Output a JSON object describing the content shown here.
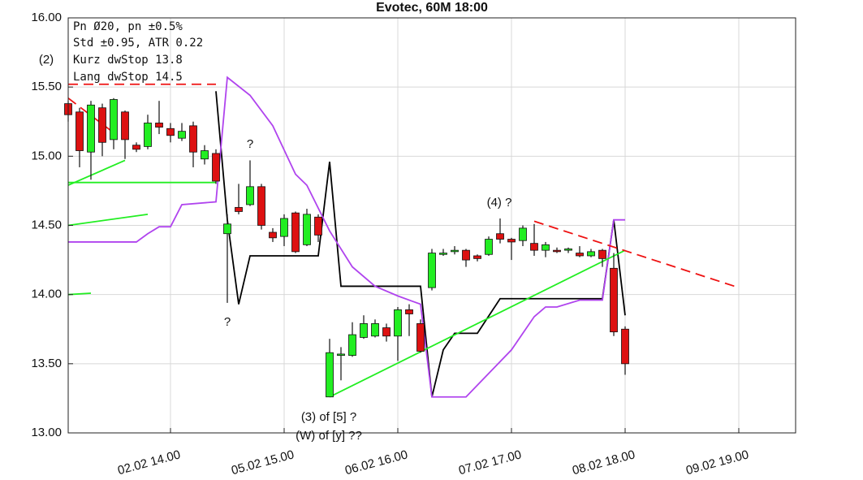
{
  "chart_data": {
    "type": "candlestick",
    "title": "Evotec, 60M 18:00",
    "info": [
      "Pn  Ø20, pn ±0.5%",
      "Std ±0.95, ATR 0.22",
      "Kurz dwStop 13.8",
      "Lang dwStop 14.5"
    ],
    "annotations": [
      "(2)",
      "?",
      "?",
      "(4) ?",
      "(3) of [5] ?",
      "(W) of [y] ??"
    ],
    "xlim": [
      0,
      64
    ],
    "xticks": [
      {
        "value": 9,
        "label": "02.02 14.00"
      },
      {
        "value": 19,
        "label": "05.02 15.00"
      },
      {
        "value": 29,
        "label": "06.02 16.00"
      },
      {
        "value": 39,
        "label": "07.02 17.00"
      },
      {
        "value": 49,
        "label": "08.02 18.00"
      },
      {
        "value": 59,
        "label": "09.02 19.00"
      }
    ],
    "ylim": [
      13,
      16
    ],
    "yticks": [
      {
        "value": 13,
        "label": "13.00"
      },
      {
        "value": 13.5,
        "label": "13.50"
      },
      {
        "value": 14,
        "label": "14.00"
      },
      {
        "value": 14.5,
        "label": "14.50"
      },
      {
        "value": 15,
        "label": "15.00"
      },
      {
        "value": 15.5,
        "label": "15.50"
      },
      {
        "value": 16,
        "label": "16.00"
      }
    ],
    "grid": true,
    "up_color": "#22ee22",
    "down_color": "#dd1111",
    "x": [
      0,
      1,
      2,
      3,
      4,
      5,
      6,
      7,
      8,
      9,
      10,
      11,
      12,
      13,
      14,
      15,
      16,
      17,
      18,
      19,
      20,
      21,
      22,
      23,
      24,
      25,
      26,
      27,
      28,
      29,
      30,
      31,
      32,
      33,
      34,
      35,
      36,
      37,
      38,
      39,
      40,
      41,
      42,
      43,
      44,
      45,
      46,
      47,
      48,
      49
    ],
    "open": [
      15.38,
      15.32,
      15.03,
      15.35,
      15.12,
      15.32,
      15.08,
      15.07,
      15.24,
      15.2,
      15.13,
      15.22,
      14.98,
      15.02,
      14.44,
      14.63,
      14.65,
      14.78,
      14.45,
      14.42,
      14.59,
      14.36,
      14.56,
      13.26,
      13.56,
      13.56,
      13.69,
      13.7,
      13.76,
      13.7,
      13.89,
      13.79,
      14.05,
      14.29,
      14.31,
      14.32,
      14.28,
      14.29,
      14.44,
      14.4,
      14.39,
      14.37,
      14.32,
      14.32,
      14.32,
      14.3,
      14.28,
      14.32,
      14.19,
      13.75
    ],
    "high": [
      15.4,
      15.35,
      15.4,
      15.38,
      15.42,
      15.33,
      15.1,
      15.3,
      15.4,
      15.24,
      15.24,
      15.25,
      15.08,
      15.05,
      14.58,
      14.8,
      14.97,
      14.8,
      14.48,
      14.58,
      14.6,
      14.62,
      14.58,
      13.68,
      13.62,
      13.8,
      13.85,
      13.82,
      13.79,
      13.91,
      13.93,
      13.82,
      14.33,
      14.33,
      14.35,
      14.33,
      14.29,
      14.42,
      14.55,
      14.41,
      14.5,
      14.51,
      14.38,
      14.34,
      14.34,
      14.35,
      14.33,
      14.33,
      14.3,
      13.77
    ],
    "low": [
      15.25,
      14.92,
      14.83,
      15.0,
      15.05,
      14.98,
      15.03,
      15.05,
      15.16,
      15.1,
      15.11,
      14.92,
      14.94,
      14.8,
      13.94,
      14.58,
      14.64,
      14.47,
      14.38,
      14.35,
      14.3,
      14.35,
      14.38,
      13.26,
      13.38,
      13.55,
      13.68,
      13.69,
      13.66,
      13.52,
      13.7,
      13.58,
      14.03,
      14.28,
      14.29,
      14.2,
      14.24,
      14.28,
      14.37,
      14.25,
      14.35,
      14.28,
      14.27,
      14.3,
      14.3,
      14.27,
      14.27,
      14.2,
      13.7,
      13.42
    ],
    "close": [
      15.3,
      15.04,
      15.37,
      15.1,
      15.41,
      15.12,
      15.05,
      15.24,
      15.21,
      15.15,
      15.18,
      15.03,
      15.04,
      14.82,
      14.51,
      14.6,
      14.78,
      14.5,
      14.41,
      14.55,
      14.31,
      14.58,
      14.43,
      13.58,
      13.57,
      13.71,
      13.79,
      13.79,
      13.7,
      13.89,
      13.86,
      13.59,
      14.3,
      14.3,
      14.32,
      14.25,
      14.26,
      14.4,
      14.4,
      14.38,
      14.48,
      14.32,
      14.36,
      14.31,
      14.33,
      14.28,
      14.31,
      14.26,
      13.73,
      13.5
    ],
    "overlays": [
      {
        "color": "#000000",
        "dash": false,
        "x": [
          13,
          14,
          15,
          16,
          22,
          23,
          24,
          31,
          32,
          33,
          34,
          36,
          38,
          47,
          48,
          49
        ],
        "y": [
          15.47,
          14.54,
          13.93,
          14.28,
          14.28,
          14.96,
          14.06,
          14.06,
          13.26,
          13.6,
          13.72,
          13.72,
          13.97,
          13.97,
          14.54,
          13.85
        ]
      },
      {
        "color": "#b044ee",
        "dash": false,
        "x": [
          0,
          6,
          7,
          8,
          9,
          10,
          13,
          14,
          16,
          18,
          20,
          21,
          23,
          25,
          27,
          29,
          31,
          32,
          35,
          37,
          39,
          41,
          42,
          43,
          45,
          47,
          48,
          49
        ],
        "y": [
          14.38,
          14.38,
          14.44,
          14.49,
          14.49,
          14.65,
          14.67,
          15.57,
          15.44,
          15.22,
          14.87,
          14.79,
          14.46,
          14.2,
          14.06,
          13.99,
          13.93,
          13.26,
          13.26,
          13.43,
          13.6,
          13.84,
          13.91,
          13.91,
          13.96,
          13.96,
          14.54,
          14.54
        ]
      },
      {
        "color": "#22ee22",
        "dash": false,
        "x": [
          0,
          5
        ],
        "y": [
          14.79,
          14.97
        ]
      },
      {
        "color": "#22ee22",
        "dash": false,
        "x": [
          0,
          13
        ],
        "y": [
          14.81,
          14.81
        ]
      },
      {
        "color": "#22ee22",
        "dash": false,
        "x": [
          0,
          7
        ],
        "y": [
          14.5,
          14.58
        ]
      },
      {
        "color": "#22ee22",
        "dash": false,
        "x": [
          0,
          2
        ],
        "y": [
          14.0,
          14.01
        ]
      },
      {
        "color": "#22ee22",
        "dash": false,
        "x": [
          23,
          49
        ],
        "y": [
          13.26,
          14.32
        ]
      },
      {
        "color": "#ee1111",
        "dash": true,
        "x": [
          0,
          13
        ],
        "y": [
          15.52,
          15.52
        ]
      },
      {
        "color": "#ee1111",
        "dash": true,
        "x": [
          0,
          4
        ],
        "y": [
          15.42,
          15.17
        ]
      },
      {
        "color": "#ee1111",
        "dash": true,
        "x": [
          41,
          59
        ],
        "y": [
          14.53,
          14.05
        ]
      }
    ]
  }
}
